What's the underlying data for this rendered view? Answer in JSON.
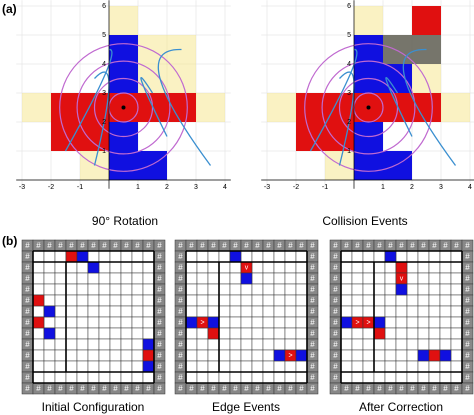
{
  "panel_a": {
    "label": "(a)",
    "plots": [
      {
        "caption": "90° Rotation"
      },
      {
        "caption": "Collision Events"
      }
    ],
    "xticks": [
      -3,
      -2,
      -1,
      1,
      2,
      3,
      4
    ],
    "yticks": [
      1,
      2,
      3,
      4,
      5,
      6
    ]
  },
  "panel_b": {
    "label": "(b)",
    "grids": [
      {
        "caption": "Initial Configuration"
      },
      {
        "caption": "Edge Events"
      },
      {
        "caption": "After Correction"
      }
    ],
    "wall_symbol": "#",
    "arrow_right": ">",
    "arrow_down": "v"
  }
}
